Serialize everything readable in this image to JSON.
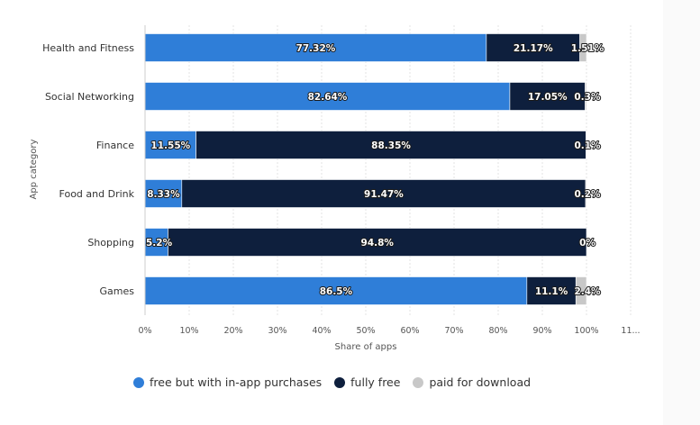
{
  "chart_data": {
    "type": "bar",
    "orientation": "horizontal",
    "stacked": true,
    "categories": [
      "Health and Fitness",
      "Social Networking",
      "Finance",
      "Food and Drink",
      "Shopping",
      "Games"
    ],
    "series": [
      {
        "name": "free but with in-app purchases",
        "values": [
          77.32,
          82.64,
          11.55,
          8.33,
          5.2,
          86.5
        ],
        "labels": [
          "77.32%",
          "82.64%",
          "11.55%",
          "8.33%",
          "5.2%",
          "86.5%"
        ]
      },
      {
        "name": "fully free",
        "values": [
          21.17,
          17.05,
          88.35,
          91.47,
          94.8,
          11.1
        ],
        "labels": [
          "21.17%",
          "17.05%",
          "88.35%",
          "91.47%",
          "94.8%",
          "11.1%"
        ]
      },
      {
        "name": "paid for download",
        "values": [
          1.51,
          0.3,
          0.1,
          0.2,
          0,
          2.4
        ],
        "labels": [
          "1.51%",
          "0.3%",
          "0.1%",
          "0.2%",
          "0%",
          "2.4%"
        ]
      }
    ],
    "colors": [
      "#2f7ed8",
      "#0e1f3d",
      "#c8c8c8"
    ],
    "xlabel": "Share of apps",
    "ylabel": "App category",
    "xlim": [
      0,
      110
    ],
    "x_ticks": [
      "0%",
      "10%",
      "20%",
      "30%",
      "40%",
      "50%",
      "60%",
      "70%",
      "80%",
      "90%",
      "100%",
      "11..."
    ],
    "grid": true,
    "legend_position": "bottom"
  }
}
